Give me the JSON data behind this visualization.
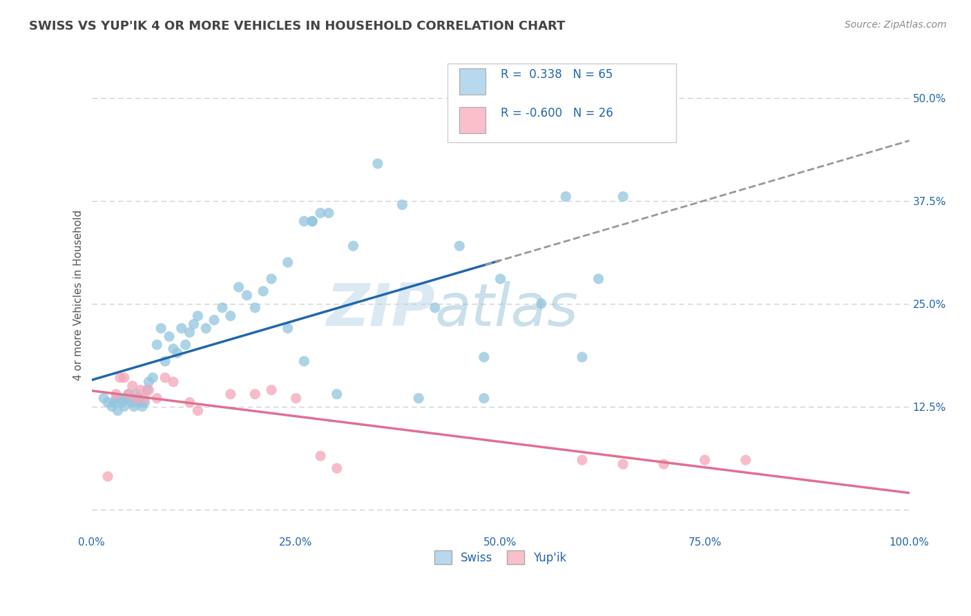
{
  "title": "SWISS VS YUP'IK 4 OR MORE VEHICLES IN HOUSEHOLD CORRELATION CHART",
  "source_text": "Source: ZipAtlas.com",
  "ylabel": "4 or more Vehicles in Household",
  "watermark": "ZIPatlas",
  "swiss_R": 0.338,
  "swiss_N": 65,
  "yupik_R": -0.6,
  "yupik_N": 26,
  "xlim": [
    0.0,
    100.0
  ],
  "ylim": [
    -3.0,
    55.0
  ],
  "x_ticks": [
    0.0,
    25.0,
    50.0,
    75.0,
    100.0
  ],
  "x_tick_labels": [
    "0.0%",
    "25.0%",
    "50.0%",
    "75.0%",
    "100.0%"
  ],
  "y_ticks": [
    0.0,
    12.5,
    25.0,
    37.5,
    50.0
  ],
  "y_tick_labels": [
    "",
    "12.5%",
    "25.0%",
    "37.5%",
    "50.0%"
  ],
  "swiss_color": "#92c5de",
  "yupik_color": "#f4a6b8",
  "swiss_color_light": "#b8d8ee",
  "yupik_color_light": "#f9c0cc",
  "trend_swiss_color": "#2166ac",
  "trend_swiss_gray": "#999999",
  "trend_yupik_color": "#e07090",
  "background_color": "#ffffff",
  "grid_color": "#cccccc",
  "title_color": "#444444",
  "axis_label_color": "#555555",
  "tick_color": "#2166ac",
  "legend_text_color": "#2166ac",
  "swiss_x": [
    1.5,
    2.0,
    2.5,
    2.8,
    3.0,
    3.2,
    3.5,
    3.8,
    4.0,
    4.2,
    4.5,
    4.8,
    5.0,
    5.2,
    5.5,
    5.8,
    6.0,
    6.2,
    6.5,
    6.8,
    7.0,
    7.5,
    8.0,
    8.5,
    9.0,
    9.5,
    10.0,
    10.5,
    11.0,
    11.5,
    12.0,
    12.5,
    13.0,
    14.0,
    15.0,
    16.0,
    17.0,
    18.0,
    19.0,
    20.0,
    21.0,
    22.0,
    24.0,
    26.0,
    30.0,
    32.0,
    35.0,
    38.0,
    40.0,
    42.0,
    45.0,
    48.0,
    50.0,
    55.0,
    58.0,
    60.0,
    62.0,
    65.0,
    24.0,
    26.0,
    27.0,
    27.0,
    28.0,
    29.0,
    48.0
  ],
  "swiss_y": [
    13.5,
    13.0,
    12.5,
    13.0,
    13.5,
    12.0,
    13.5,
    13.0,
    12.5,
    13.5,
    14.0,
    13.5,
    13.0,
    12.5,
    14.0,
    13.5,
    13.0,
    12.5,
    13.0,
    14.5,
    15.5,
    16.0,
    20.0,
    22.0,
    18.0,
    21.0,
    19.5,
    19.0,
    22.0,
    20.0,
    21.5,
    22.5,
    23.5,
    22.0,
    23.0,
    24.5,
    23.5,
    27.0,
    26.0,
    24.5,
    26.5,
    28.0,
    30.0,
    18.0,
    14.0,
    32.0,
    42.0,
    37.0,
    13.5,
    24.5,
    32.0,
    18.5,
    28.0,
    25.0,
    38.0,
    18.5,
    28.0,
    38.0,
    22.0,
    35.0,
    35.0,
    35.0,
    36.0,
    36.0,
    13.5
  ],
  "yupik_x": [
    2.0,
    3.0,
    4.0,
    4.5,
    5.0,
    5.5,
    6.0,
    6.5,
    7.0,
    8.0,
    9.0,
    10.0,
    12.0,
    13.0,
    17.0,
    20.0,
    22.0,
    25.0,
    28.0,
    30.0,
    60.0,
    65.0,
    70.0,
    75.0,
    80.0,
    3.5
  ],
  "yupik_y": [
    4.0,
    14.0,
    16.0,
    14.0,
    15.0,
    13.5,
    14.5,
    13.5,
    14.5,
    13.5,
    16.0,
    15.5,
    13.0,
    12.0,
    14.0,
    14.0,
    14.5,
    13.5,
    6.5,
    5.0,
    6.0,
    5.5,
    5.5,
    6.0,
    6.0,
    16.0
  ]
}
